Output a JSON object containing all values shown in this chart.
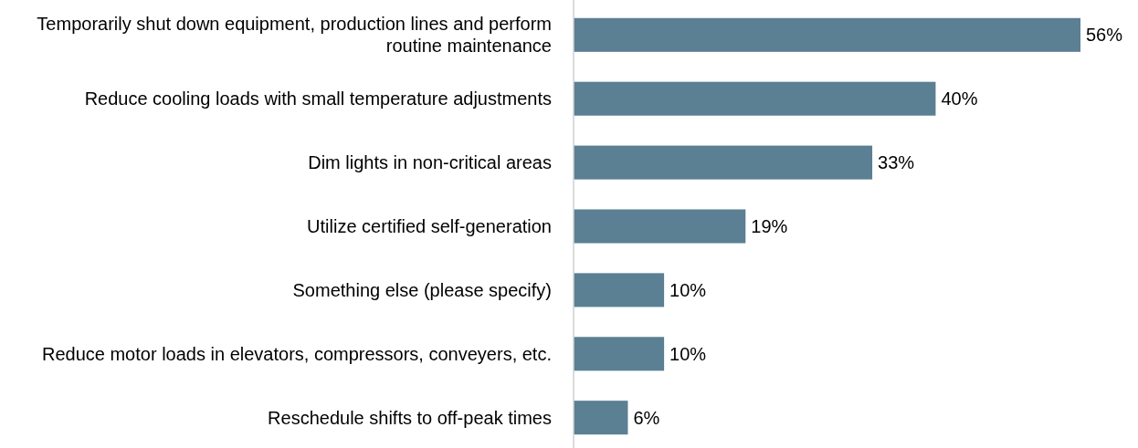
{
  "chart_data": {
    "type": "bar",
    "orientation": "horizontal",
    "categories": [
      "Temporarily shut down equipment, production lines and perform routine maintenance",
      "Reduce cooling loads with small temperature adjustments",
      "Dim lights in non-critical areas",
      "Utilize certified self-generation",
      "Something else (please specify)",
      "Reduce motor loads in elevators, compressors, conveyers, etc.",
      "Reschedule shifts to off-peak times"
    ],
    "values": [
      56,
      40,
      33,
      19,
      10,
      10,
      6
    ],
    "color": "#5b7f93",
    "value_labels": [
      "56%",
      "40%",
      "33%",
      "19%",
      "10%",
      "10%",
      "6%"
    ]
  }
}
